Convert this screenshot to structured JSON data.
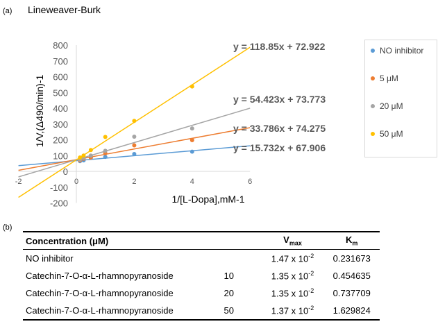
{
  "panel_a_label": "(a)",
  "panel_b_label": "(b)",
  "chart_data": {
    "type": "scatter",
    "title": "Lineweaver-Burk",
    "xlabel": "1/[L-Dopa],mM-1",
    "ylabel": "1/V,(Δ490/min)-1",
    "xlim": [
      -2,
      6
    ],
    "ylim": [
      -200,
      800
    ],
    "xticks": [
      "-2",
      "0",
      "2",
      "4",
      "6"
    ],
    "yticks": [
      "800",
      "700",
      "600",
      "500",
      "400",
      "300",
      "200",
      "100",
      "0",
      "-100",
      "-200"
    ],
    "legend_position": "right",
    "series": [
      {
        "name": "NO inhibitor",
        "color": "#5b9bd5",
        "x": [
          0.125,
          0.25,
          0.5,
          1,
          2,
          4
        ],
        "y": [
          65,
          70,
          85,
          92,
          110,
          125
        ],
        "slope": 15.732,
        "intercept": 67.906,
        "equation": "y = 15.732x + 67.906"
      },
      {
        "name": "5 μM",
        "color": "#ed7d31",
        "x": [
          0.125,
          0.25,
          0.5,
          1,
          2,
          4
        ],
        "y": [
          70,
          80,
          88,
          115,
          165,
          198
        ],
        "slope": 33.786,
        "intercept": 74.275,
        "equation": "y = 33.786x + 74.275"
      },
      {
        "name": "20 μM",
        "color": "#a5a5a5",
        "x": [
          0.125,
          0.25,
          0.5,
          1,
          2,
          4
        ],
        "y": [
          75,
          85,
          100,
          130,
          220,
          272
        ],
        "slope": 54.423,
        "intercept": 73.773,
        "equation": "y = 54.423x + 73.773"
      },
      {
        "name": "50 μM",
        "color": "#ffc000",
        "x": [
          0.125,
          0.25,
          0.5,
          1,
          2,
          4
        ],
        "y": [
          88,
          100,
          135,
          218,
          320,
          538
        ],
        "slope": 118.85,
        "intercept": 72.922,
        "equation": "y = 118.85x + 72.922"
      }
    ]
  },
  "table": {
    "headers": {
      "concentration": "Concentration (μM)",
      "vmax_base": "V",
      "vmax_sub": "max",
      "km_base": "K",
      "km_sub": "m"
    },
    "rows": [
      {
        "name": "NO inhibitor",
        "conc": "",
        "vmax": "1.47 x 10",
        "exp": "-2",
        "km": "0.231673"
      },
      {
        "name": "Catechin-7-O-α-L-rhamnopyranoside",
        "conc": "10",
        "vmax": "1.35 x 10",
        "exp": "-2",
        "km": "0.454635"
      },
      {
        "name": "Catechin-7-O-α-L-rhamnopyranoside",
        "conc": "20",
        "vmax": "1.35 x 10",
        "exp": "-2",
        "km": "0.737709"
      },
      {
        "name": "Catechin-7-O-α-L-rhamnopyranoside",
        "conc": "50",
        "vmax": "1.37 x 10",
        "exp": "-2",
        "km": "1.629824"
      }
    ]
  }
}
